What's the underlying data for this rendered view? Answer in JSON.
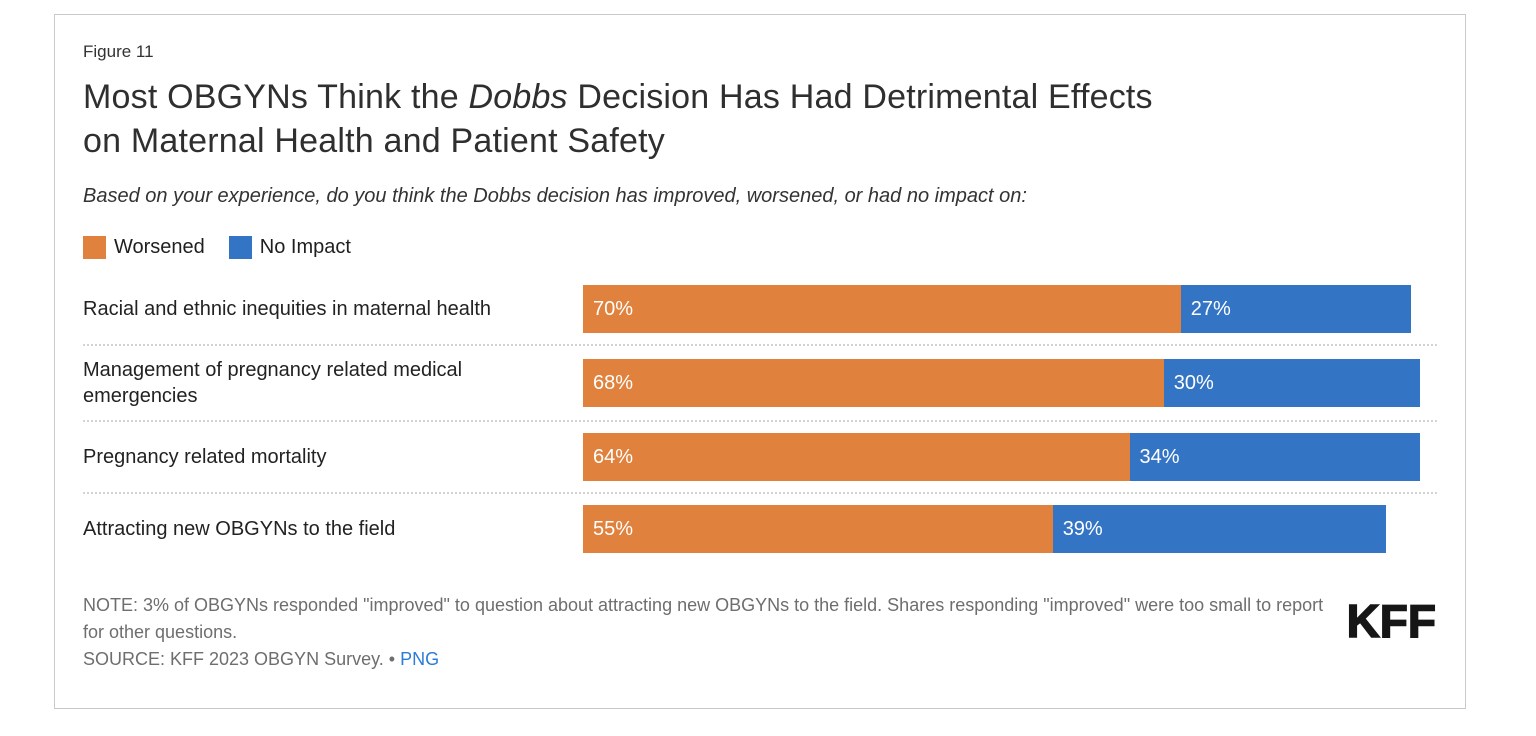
{
  "card": {
    "figure_label": "Figure 11",
    "title": {
      "line1_pre": "Most OBGYNs Think the ",
      "line1_italic": "Dobbs",
      "line1_post": " Decision Has Had Detrimental Effects",
      "line2": "on Maternal Health and Patient Safety"
    },
    "subtitle": "Based on your experience, do you think the Dobbs decision has improved, worsened, or had no impact on:"
  },
  "legend": [
    {
      "label": "Worsened",
      "color": "#e0823d"
    },
    {
      "label": "No Impact",
      "color": "#3474c4"
    }
  ],
  "chart_data": {
    "type": "bar",
    "orientation": "horizontal",
    "stacked": true,
    "unit": "%",
    "xlim": [
      0,
      100
    ],
    "grid": false,
    "legend_position": "top-left",
    "categories": [
      "Racial and ethnic inequities in maternal health",
      "Management of pregnancy related medical emergencies",
      "Pregnancy related mortality",
      "Attracting new OBGYNs to the field"
    ],
    "series": [
      {
        "name": "Worsened",
        "color": "#e0823d",
        "values": [
          70,
          68,
          64,
          55
        ]
      },
      {
        "name": "No Impact",
        "color": "#3474c4",
        "values": [
          27,
          30,
          34,
          39
        ]
      }
    ]
  },
  "footer": {
    "note": "NOTE: 3% of OBGYNs responded \"improved\" to question about attracting new OBGYNs to the field. Shares responding \"improved\" were too small to report for other questions.",
    "source_prefix": "SOURCE: KFF 2023 OBGYN Survey. ",
    "bullet": "•",
    "png_link_label": "PNG",
    "logo_text": "KFF"
  }
}
